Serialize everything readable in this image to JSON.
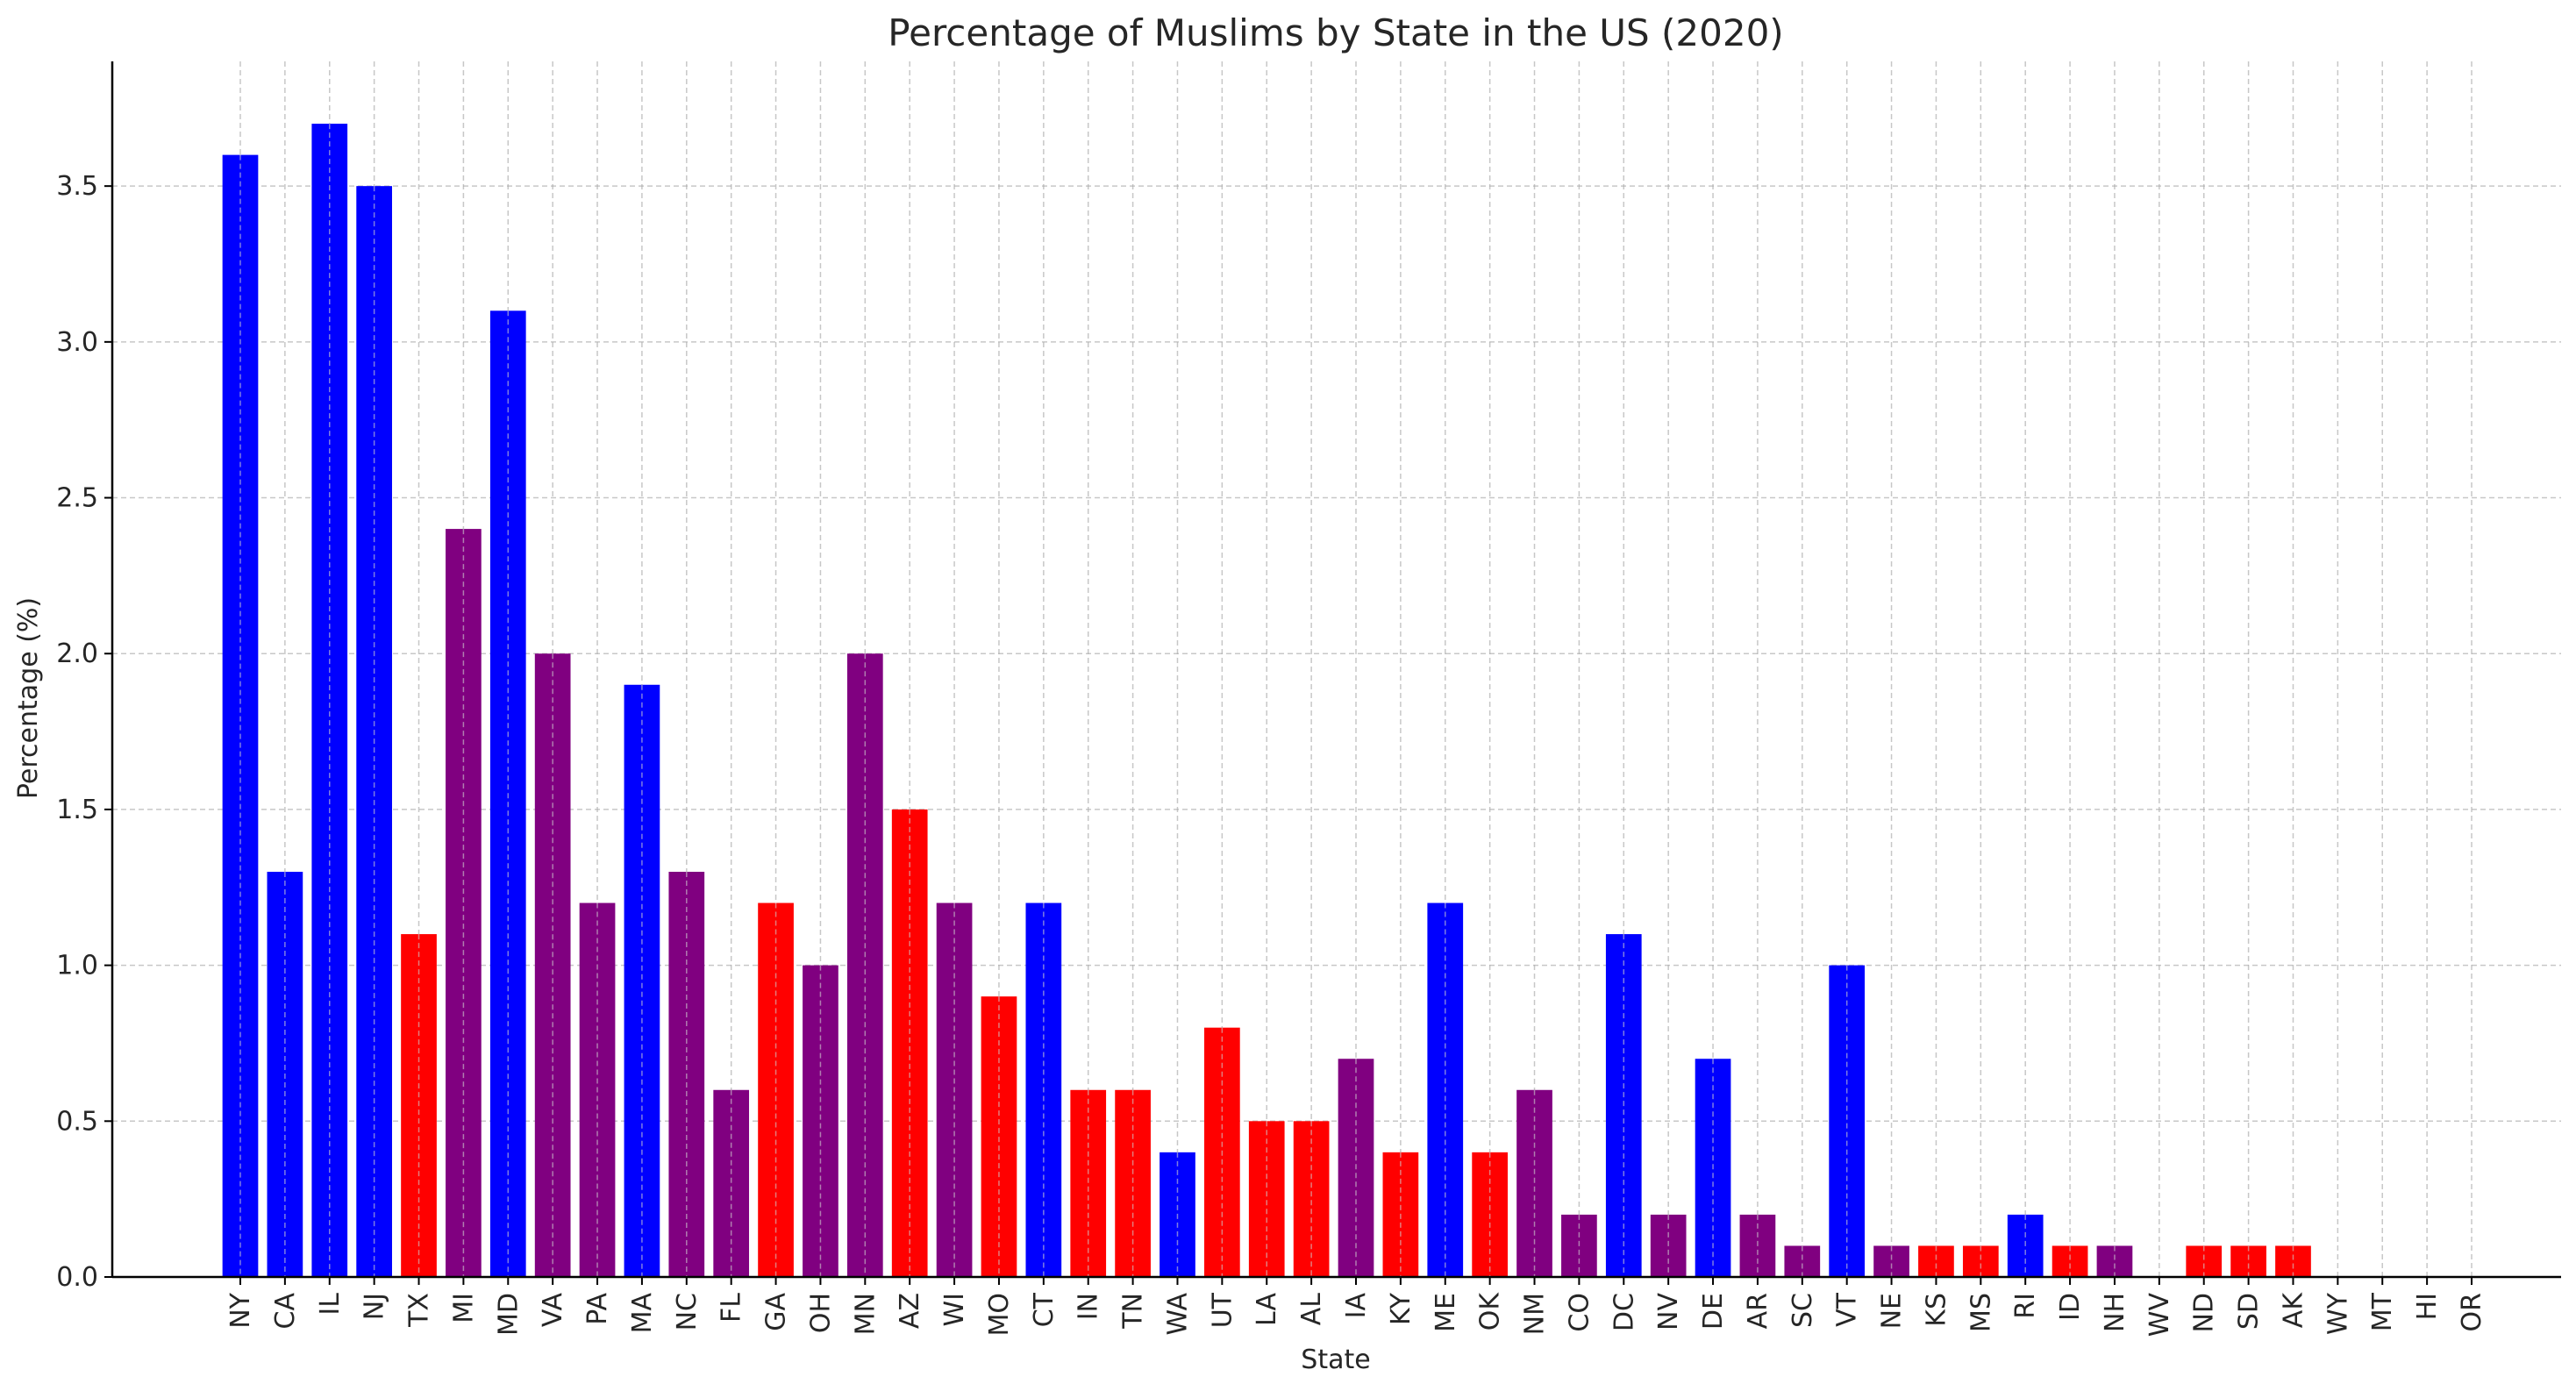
{
  "chart_data": {
    "type": "bar",
    "title": "Percentage of Muslims by State in the US (2020)",
    "xlabel": "State",
    "ylabel": "Percentage (%)",
    "ylim": [
      0,
      3.9
    ],
    "yticks": [
      "0.0",
      "0.5",
      "1.0",
      "1.5",
      "2.0",
      "2.5",
      "3.0",
      "3.5"
    ],
    "grid": true,
    "categories": [
      "NY",
      "CA",
      "IL",
      "NJ",
      "TX",
      "MI",
      "MD",
      "VA",
      "PA",
      "MA",
      "NC",
      "FL",
      "GA",
      "OH",
      "MN",
      "AZ",
      "WI",
      "MO",
      "CT",
      "IN",
      "TN",
      "WA",
      "UT",
      "LA",
      "AL",
      "IA",
      "KY",
      "ME",
      "OK",
      "NM",
      "CO",
      "DC",
      "NV",
      "DE",
      "AR",
      "SC",
      "VT",
      "NE",
      "KS",
      "MS",
      "RI",
      "ID",
      "NH",
      "WV",
      "ND",
      "SD",
      "AK",
      "WY",
      "MT",
      "HI",
      "OR"
    ],
    "values": [
      3.6,
      1.3,
      3.7,
      3.5,
      1.1,
      2.4,
      3.1,
      2.0,
      1.2,
      1.9,
      1.3,
      0.6,
      1.2,
      1.0,
      2.0,
      1.5,
      1.2,
      0.9,
      1.2,
      0.6,
      0.6,
      0.4,
      0.8,
      0.5,
      0.5,
      0.7,
      0.4,
      1.2,
      0.4,
      0.6,
      0.2,
      1.1,
      0.2,
      0.7,
      0.2,
      0.1,
      1.0,
      0.1,
      0.1,
      0.1,
      0.2,
      0.1,
      0.1,
      0.0,
      0.1,
      0.1,
      0.1,
      0.0,
      0.0,
      0.0,
      0.0
    ],
    "bar_colors": [
      "blue",
      "blue",
      "blue",
      "blue",
      "red",
      "purple",
      "blue",
      "purple",
      "purple",
      "blue",
      "purple",
      "purple",
      "red",
      "purple",
      "purple",
      "red",
      "purple",
      "red",
      "blue",
      "red",
      "red",
      "blue",
      "red",
      "red",
      "red",
      "purple",
      "red",
      "blue",
      "red",
      "purple",
      "purple",
      "blue",
      "purple",
      "blue",
      "purple",
      "purple",
      "blue",
      "purple",
      "red",
      "red",
      "blue",
      "red",
      "purple",
      "purple",
      "red",
      "red",
      "red",
      "red",
      "red",
      "red",
      "red"
    ],
    "palette": {
      "blue": "#0000ff",
      "red": "#ff0000",
      "purple": "#800080",
      "grid": "#b0b0b0",
      "axis": "#000000"
    }
  }
}
